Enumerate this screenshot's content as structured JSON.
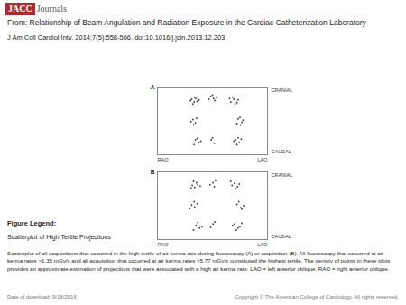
{
  "header": {
    "logo": "JACC",
    "logo_suffix": "Journals",
    "from": "From: Relationship of Beam Angulation and Radiation Exposure in the Cardiac Catheterization Laboratory",
    "citation": "J Am Coll Cardiol Intv. 2014;7(5):558-566. doi:10.1016/j.jcin.2013.12.203"
  },
  "chart_data": [
    {
      "type": "scatter",
      "title": "A",
      "color": "#3a3a3a",
      "tick_labels": false,
      "xlim": [
        -90,
        90
      ],
      "ylim": [
        -50,
        50
      ],
      "xlabel_left": "RAO",
      "xlabel_right": "LAO",
      "ylabel_top": "CRANIAL",
      "ylabel_bottom": "CAUDAL",
      "x": [
        -34,
        -30,
        -27,
        -32,
        -25,
        -36,
        -29,
        -22,
        -3,
        2,
        0,
        4,
        -6,
        6,
        30,
        35,
        40,
        33,
        42,
        28,
        37,
        -32,
        -28,
        -35,
        -26,
        -31,
        42,
        48,
        45,
        50,
        40,
        46,
        -28,
        -22,
        -30,
        -25,
        -19,
        38,
        44,
        40,
        35,
        47,
        42,
        -2,
        3,
        0
      ],
      "y": [
        32,
        28,
        33,
        25,
        29,
        30,
        35,
        31,
        36,
        33,
        38,
        30,
        32,
        35,
        28,
        32,
        27,
        35,
        31,
        33,
        25,
        2,
        -3,
        -1,
        4,
        -6,
        3,
        -2,
        5,
        1,
        -4,
        -6,
        -28,
        -32,
        -35,
        -26,
        -30,
        -28,
        -32,
        -35,
        -30,
        -27,
        -25,
        -28,
        -33,
        -25
      ]
    },
    {
      "type": "scatter",
      "title": "B",
      "color": "#3a3a3a",
      "tick_labels": false,
      "xlim": [
        -90,
        90
      ],
      "ylim": [
        -50,
        50
      ],
      "xlabel_left": "RAO",
      "xlabel_right": "LAO",
      "ylabel_top": "CRANIAL",
      "ylabel_bottom": "CAUDAL",
      "x": [
        -33,
        -29,
        -26,
        -35,
        -24,
        -31,
        -20,
        1,
        -4,
        5,
        3,
        32,
        36,
        41,
        30,
        44,
        38,
        -34,
        -29,
        -25,
        -37,
        -30,
        40,
        46,
        43,
        51,
        48,
        -27,
        -21,
        -31,
        -24,
        -17,
        36,
        42,
        39,
        33,
        48,
        45,
        1,
        -3,
        4
      ],
      "y": [
        30,
        27,
        34,
        26,
        31,
        36,
        29,
        34,
        31,
        37,
        28,
        30,
        33,
        28,
        36,
        32,
        25,
        1,
        -2,
        3,
        -4,
        6,
        2,
        -3,
        6,
        0,
        -5,
        -29,
        -33,
        -36,
        -25,
        -31,
        -27,
        -33,
        -36,
        -29,
        -26,
        -31,
        -27,
        -32,
        -24
      ]
    }
  ],
  "figure_legend": {
    "heading": "Figure Legend:",
    "title": "Scatterplot of High Tertile Projections",
    "text": "Scatterplot of all acquisitions that occurred in the high tertile of air kerma rate during fluoroscopy (A) or acquisition (B). All fluoroscopy that occurred at air kerma rates >1.35 mGy/s and all acquisition that occurred at air kerma rates >5.77 mGy/s constituted the highest tertile. The density of points in these plots provides an approximate estimation of projections that were associated with a high air kerma rate. LAO = left anterior oblique; RAO = right anterior oblique."
  },
  "footer": {
    "date": "Date of download: 9/18/2016",
    "copyright": "Copyright © The American College of Cardiology. All rights reserved."
  }
}
